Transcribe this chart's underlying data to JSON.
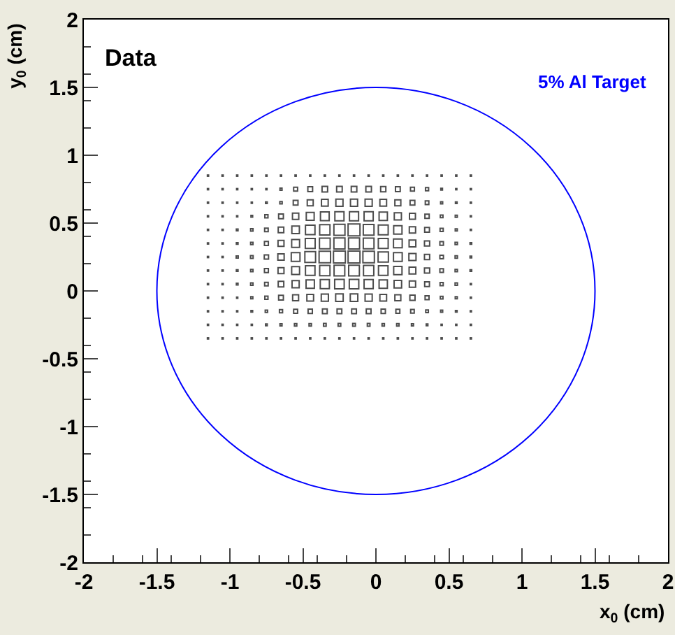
{
  "chart_data": {
    "type": "bubble",
    "xlabel": "x$_{0}$ (cm)",
    "ylabel": "y$_{0}$ (cm)",
    "annotations": [
      "Data",
      "5% Al Target"
    ],
    "marker": "square",
    "xlim": [
      -2,
      2
    ],
    "ylim": [
      -2,
      2
    ],
    "xticks": [
      -2,
      -1.5,
      -1,
      -0.5,
      0,
      0.5,
      1,
      1.5,
      2
    ],
    "yticks": [
      -2,
      -1.5,
      -1,
      -0.5,
      0,
      0.5,
      1,
      1.5,
      2
    ],
    "x": [
      -1.15,
      -1.05,
      -0.95,
      -0.85,
      -0.75,
      -0.65,
      -0.55,
      -0.45,
      -0.35,
      -0.25,
      -0.15,
      -0.05,
      0.05,
      0.15,
      0.25,
      0.35,
      0.45,
      0.55,
      0.65
    ],
    "series": [
      {
        "color": "#000000",
        "values": [
          0.85,
          0.85,
          0.85,
          0.85,
          0.85,
          0.85,
          0.85,
          0.85,
          0.85,
          0.85,
          0.85,
          0.85,
          0.85,
          0.85,
          0.85,
          0.85,
          0.85,
          0.85,
          0.85
        ],
        "sizes": [
          0.01,
          0.01,
          0.01,
          0.01,
          0.01,
          0.01,
          0.01,
          0.01,
          0.01,
          0.01,
          0.01,
          0.01,
          0.01,
          0.01,
          0.01,
          0.01,
          0.01,
          0.01,
          0.01
        ]
      },
      {
        "color": "#000000",
        "values": [
          0.75,
          0.75,
          0.75,
          0.75,
          0.75,
          0.75,
          0.75,
          0.75,
          0.75,
          0.75,
          0.75,
          0.75,
          0.75,
          0.75,
          0.75,
          0.75,
          0.75,
          0.75,
          0.75
        ],
        "sizes": [
          0.01,
          0.01,
          0.01,
          0.01,
          0.01,
          0.03,
          0.11,
          0.16,
          0.22,
          0.22,
          0.22,
          0.22,
          0.19,
          0.16,
          0.11,
          0.07,
          0.02,
          0.01,
          0.01
        ]
      },
      {
        "color": "#000000",
        "values": [
          0.65,
          0.65,
          0.65,
          0.65,
          0.65,
          0.65,
          0.65,
          0.65,
          0.65,
          0.65,
          0.65,
          0.65,
          0.65,
          0.65,
          0.65,
          0.65,
          0.65,
          0.65,
          0.65
        ],
        "sizes": [
          0.01,
          0.01,
          0.01,
          0.01,
          0.02,
          0.04,
          0.16,
          0.25,
          0.32,
          0.36,
          0.36,
          0.36,
          0.32,
          0.25,
          0.16,
          0.09,
          0.03,
          0.02,
          0.01
        ]
      },
      {
        "color": "#000000",
        "values": [
          0.55,
          0.55,
          0.55,
          0.55,
          0.55,
          0.55,
          0.55,
          0.55,
          0.55,
          0.55,
          0.55,
          0.55,
          0.55,
          0.55,
          0.55,
          0.55,
          0.55,
          0.55,
          0.55
        ],
        "sizes": [
          0.01,
          0.01,
          0.01,
          0.02,
          0.07,
          0.16,
          0.28,
          0.44,
          0.54,
          0.59,
          0.59,
          0.59,
          0.49,
          0.36,
          0.25,
          0.13,
          0.05,
          0.03,
          0.01
        ]
      },
      {
        "color": "#000000",
        "values": [
          0.45,
          0.45,
          0.45,
          0.45,
          0.45,
          0.45,
          0.45,
          0.45,
          0.45,
          0.45,
          0.45,
          0.45,
          0.45,
          0.45,
          0.45,
          0.45,
          0.45,
          0.45,
          0.45
        ],
        "sizes": [
          0.01,
          0.01,
          0.02,
          0.04,
          0.09,
          0.22,
          0.4,
          0.64,
          0.75,
          0.87,
          1,
          0.81,
          0.69,
          0.49,
          0.28,
          0.16,
          0.07,
          0.03,
          0.01
        ]
      },
      {
        "color": "#000000",
        "values": [
          0.35,
          0.35,
          0.35,
          0.35,
          0.35,
          0.35,
          0.35,
          0.35,
          0.35,
          0.35,
          0.35,
          0.35,
          0.35,
          0.35,
          0.35,
          0.35,
          0.35,
          0.35,
          0.35
        ],
        "sizes": [
          0.01,
          0.01,
          0.02,
          0.04,
          0.11,
          0.25,
          0.44,
          0.69,
          0.81,
          0.87,
          0.87,
          0.81,
          0.69,
          0.54,
          0.32,
          0.19,
          0.09,
          0.04,
          0.02
        ]
      },
      {
        "color": "#000000",
        "values": [
          0.25,
          0.25,
          0.25,
          0.25,
          0.25,
          0.25,
          0.25,
          0.25,
          0.25,
          0.25,
          0.25,
          0.25,
          0.25,
          0.25,
          0.25,
          0.25,
          0.25,
          0.25,
          0.25
        ],
        "sizes": [
          0.01,
          0.01,
          0.03,
          0.05,
          0.13,
          0.28,
          0.54,
          0.81,
          0.93,
          1,
          1,
          0.93,
          0.75,
          0.54,
          0.36,
          0.19,
          0.09,
          0.04,
          0.02
        ]
      },
      {
        "color": "#000000",
        "values": [
          0.15,
          0.15,
          0.15,
          0.15,
          0.15,
          0.15,
          0.15,
          0.15,
          0.15,
          0.15,
          0.15,
          0.15,
          0.15,
          0.15,
          0.15,
          0.15,
          0.15,
          0.15,
          0.15
        ],
        "sizes": [
          0.01,
          0.01,
          0.02,
          0.04,
          0.11,
          0.25,
          0.44,
          0.64,
          0.75,
          0.81,
          0.81,
          0.75,
          0.64,
          0.49,
          0.32,
          0.19,
          0.09,
          0.04,
          0.02
        ]
      },
      {
        "color": "#000000",
        "values": [
          0.05,
          0.05,
          0.05,
          0.05,
          0.05,
          0.05,
          0.05,
          0.05,
          0.05,
          0.05,
          0.05,
          0.05,
          0.05,
          0.05,
          0.05,
          0.05,
          0.05,
          0.05,
          0.05
        ],
        "sizes": [
          0.01,
          0.01,
          0.02,
          0.04,
          0.09,
          0.22,
          0.36,
          0.49,
          0.59,
          0.64,
          0.64,
          0.59,
          0.49,
          0.4,
          0.28,
          0.16,
          0.07,
          0.04,
          0.01
        ]
      },
      {
        "color": "#000000",
        "values": [
          -0.05,
          -0.05,
          -0.05,
          -0.05,
          -0.05,
          -0.05,
          -0.05,
          -0.05,
          -0.05,
          -0.05,
          -0.05,
          -0.05,
          -0.05,
          -0.05,
          -0.05,
          -0.05,
          -0.05,
          -0.05,
          -0.05
        ],
        "sizes": [
          0.01,
          0.01,
          0.01,
          0.03,
          0.07,
          0.16,
          0.25,
          0.32,
          0.36,
          0.4,
          0.4,
          0.36,
          0.32,
          0.25,
          0.19,
          0.11,
          0.05,
          0.03,
          0.01
        ]
      },
      {
        "color": "#000000",
        "values": [
          -0.15,
          -0.15,
          -0.15,
          -0.15,
          -0.15,
          -0.15,
          -0.15,
          -0.15,
          -0.15,
          -0.15,
          -0.15,
          -0.15,
          -0.15,
          -0.15,
          -0.15,
          -0.15,
          -0.15,
          -0.15,
          -0.15
        ],
        "sizes": [
          0.01,
          0.01,
          0.01,
          0.02,
          0.04,
          0.07,
          0.11,
          0.13,
          0.16,
          0.16,
          0.16,
          0.16,
          0.13,
          0.11,
          0.09,
          0.05,
          0.03,
          0.02,
          0.01
        ]
      },
      {
        "color": "#000000",
        "values": [
          -0.25,
          -0.25,
          -0.25,
          -0.25,
          -0.25,
          -0.25,
          -0.25,
          -0.25,
          -0.25,
          -0.25,
          -0.25,
          -0.25,
          -0.25,
          -0.25,
          -0.25,
          -0.25,
          -0.25,
          -0.25,
          -0.25
        ],
        "sizes": [
          0.01,
          0.01,
          0.01,
          0.01,
          0.02,
          0.03,
          0.04,
          0.04,
          0.05,
          0.05,
          0.05,
          0.05,
          0.04,
          0.04,
          0.03,
          0.02,
          0.01,
          0.01,
          0.01
        ]
      },
      {
        "color": "#000000",
        "values": [
          -0.35,
          -0.35,
          -0.35,
          -0.35,
          -0.35,
          -0.35,
          -0.35,
          -0.35,
          -0.35,
          -0.35,
          -0.35,
          -0.35,
          -0.35,
          -0.35,
          -0.35,
          -0.35,
          -0.35,
          -0.35,
          -0.35
        ],
        "sizes": [
          0.01,
          0.01,
          0.01,
          0.01,
          0.01,
          0.01,
          0.01,
          0.01,
          0.01,
          0.01,
          0.01,
          0.01,
          0.01,
          0.01,
          0.01,
          0.01,
          0.01,
          0.01,
          0.01
        ]
      }
    ]
  }
}
